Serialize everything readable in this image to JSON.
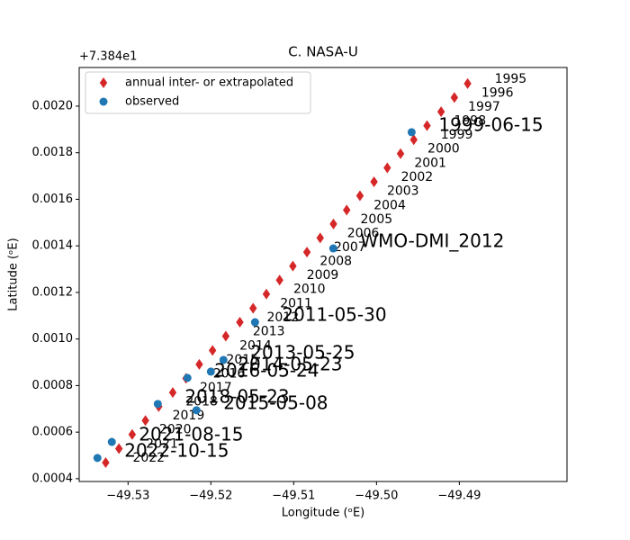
{
  "chart_data": {
    "type": "scatter",
    "title": "C. NASA-U",
    "x_label": "Longitude (ᵒE)",
    "y_label": "Latitude (ᵒE)",
    "y_offset_label": "+7.384e1",
    "xlim": [
      -49.5359,
      -49.477
    ],
    "ylim": [
      0.000388,
      0.002166
    ],
    "xticks": [
      {
        "value": -49.53,
        "label": "−49.53"
      },
      {
        "value": -49.52,
        "label": "−49.52"
      },
      {
        "value": -49.51,
        "label": "−49.51"
      },
      {
        "value": -49.5,
        "label": "−49.50"
      },
      {
        "value": -49.49,
        "label": "−49.49"
      }
    ],
    "yticks": [
      {
        "value": 0.0004,
        "label": "0.0004"
      },
      {
        "value": 0.0006,
        "label": "0.0006"
      },
      {
        "value": 0.0008,
        "label": "0.0008"
      },
      {
        "value": 0.001,
        "label": "0.0010"
      },
      {
        "value": 0.0012,
        "label": "0.0012"
      },
      {
        "value": 0.0014,
        "label": "0.0014"
      },
      {
        "value": 0.0016,
        "label": "0.0016"
      },
      {
        "value": 0.0018,
        "label": "0.0018"
      },
      {
        "value": 0.002,
        "label": "0.0020"
      }
    ],
    "legend": "upper left",
    "series": [
      {
        "name": "annual inter- or extrapolated",
        "color": "#d62728",
        "marker": "diamond",
        "label_color": "#d3d3d3",
        "x": [
          -49.489,
          -49.4906,
          -49.4922,
          -49.4939,
          -49.4955,
          -49.4971,
          -49.4987,
          -49.5003,
          -49.502,
          -49.5036,
          -49.5052,
          -49.5068,
          -49.5084,
          -49.5101,
          -49.5117,
          -49.5133,
          -49.5149,
          -49.5165,
          -49.5182,
          -49.5198,
          -49.5214,
          -49.523,
          -49.5246,
          -49.5263,
          -49.5279,
          -49.5295,
          -49.5311,
          -49.5327
        ],
        "values": [
          0.002097,
          0.002037,
          0.001976,
          0.001916,
          0.001856,
          0.001796,
          0.001735,
          0.001675,
          0.001615,
          0.001554,
          0.001494,
          0.001434,
          0.001373,
          0.001313,
          0.001253,
          0.001193,
          0.001132,
          0.001072,
          0.001012,
          0.000951,
          0.000891,
          0.000831,
          0.00077,
          0.00071,
          0.00065,
          0.00059,
          0.000529,
          0.000469
        ],
        "point_labels": [
          "1995",
          "1996",
          "1997",
          "1998",
          "1999",
          "2000",
          "2001",
          "2002",
          "2003",
          "2004",
          "2005",
          "2006",
          "2007",
          "2008",
          "2009",
          "2010",
          "2011",
          "2012",
          "2013",
          "2014",
          "2015",
          "2016",
          "2017",
          "2018",
          "2019",
          "2020",
          "2021",
          "2022"
        ]
      },
      {
        "name": "observed",
        "color": "#1f77b4",
        "marker": "circle",
        "label_color": "#000000",
        "x": [
          -49.49576,
          -49.50522,
          -49.51467,
          -49.51848,
          -49.52,
          -49.52283,
          -49.52641,
          -49.52174,
          -49.53196,
          -49.5337
        ],
        "values": [
          0.001888,
          0.001389,
          0.001072,
          0.00091,
          0.00086,
          0.000833,
          0.000721,
          0.000694,
          0.000558,
          0.000489
        ],
        "point_labels": [
          "1999-06-15",
          "WMO-DMI_2012",
          "2011-05-30",
          "2013-05-25",
          "2014-05-23",
          "2016-05-24",
          "2018-05-23",
          "2015-05-08",
          "2021-08-15",
          "2022-10-15"
        ]
      }
    ]
  }
}
